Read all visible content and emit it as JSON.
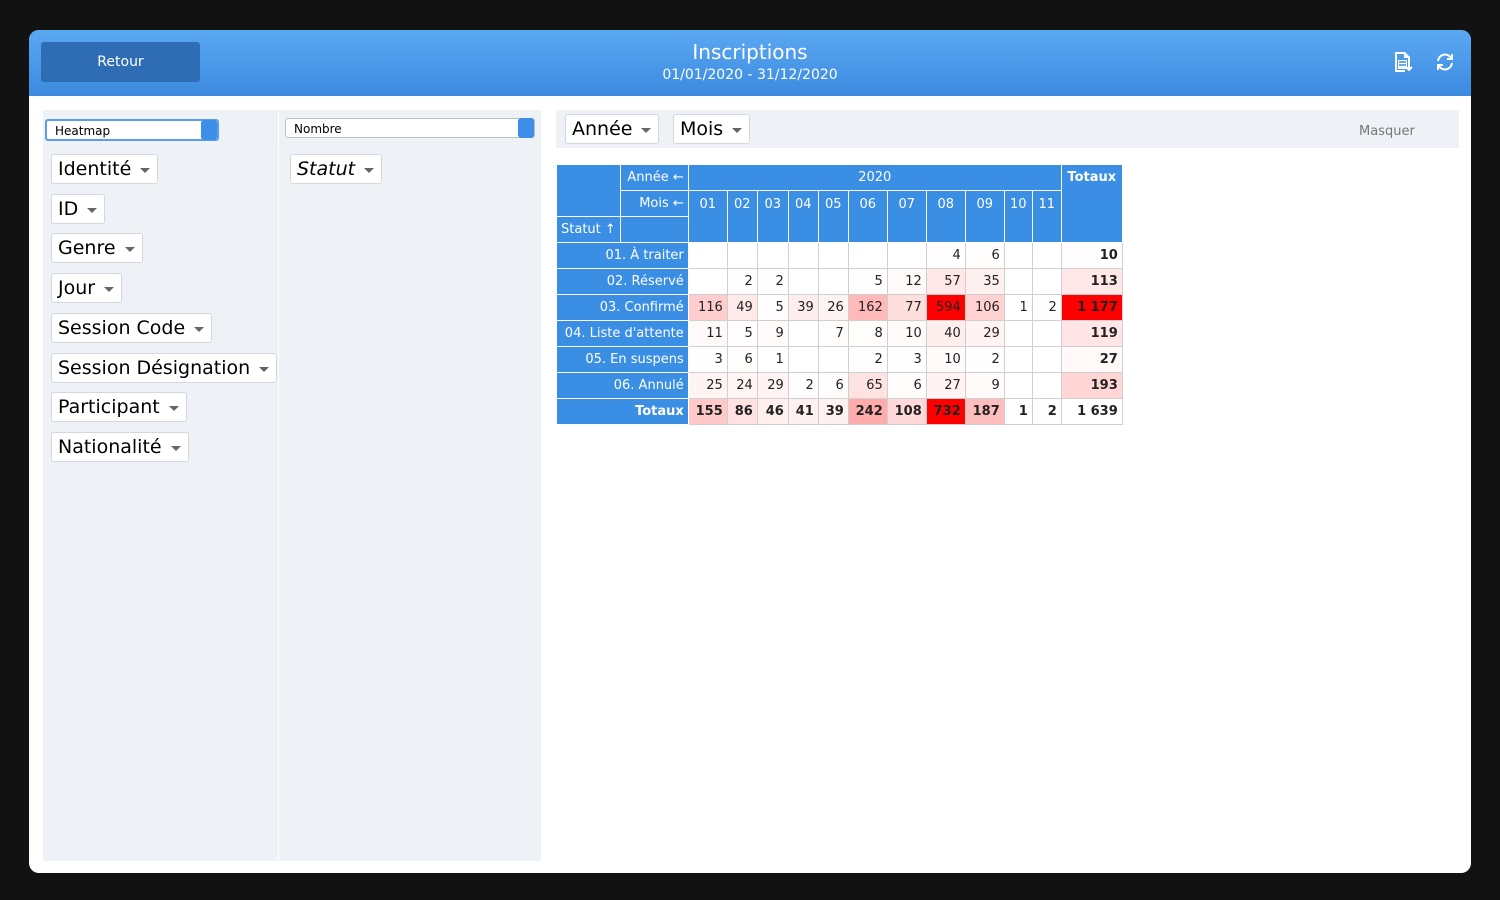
{
  "header": {
    "back_button": "Retour",
    "title": "Inscriptions",
    "date_range": "01/01/2020 - 31/12/2020"
  },
  "controls": {
    "renderer": "Heatmap",
    "aggregator": "Nombre",
    "unused_fields": [
      "Identité",
      "ID",
      "Genre",
      "Jour",
      "Session Code",
      "Session Désignation",
      "Participant",
      "Nationalité"
    ],
    "row_fields": [
      "Statut"
    ],
    "col_fields": [
      "Année",
      "Mois"
    ],
    "hide_link": "Masquer"
  },
  "table": {
    "year_label": "Année ←",
    "month_label": "Mois ←",
    "row_label": "Statut ↑",
    "year": "2020",
    "totals_header": "Totaux",
    "months": [
      "01",
      "02",
      "03",
      "04",
      "05",
      "06",
      "07",
      "08",
      "09",
      "10",
      "11"
    ],
    "rows": [
      {
        "label": "01. À traiter",
        "cells": [
          null,
          null,
          null,
          null,
          null,
          null,
          null,
          4,
          6,
          null,
          null
        ],
        "total": 10
      },
      {
        "label": "02. Réservé",
        "cells": [
          null,
          2,
          2,
          null,
          null,
          5,
          12,
          57,
          35,
          null,
          null
        ],
        "total": 113
      },
      {
        "label": "03. Confirmé",
        "cells": [
          116,
          49,
          5,
          39,
          26,
          162,
          77,
          594,
          106,
          1,
          2
        ],
        "total": "1 177"
      },
      {
        "label": "04. Liste d'attente",
        "cells": [
          11,
          5,
          9,
          null,
          7,
          8,
          10,
          40,
          29,
          null,
          null
        ],
        "total": 119
      },
      {
        "label": "05. En suspens",
        "cells": [
          3,
          6,
          1,
          null,
          null,
          2,
          3,
          10,
          2,
          null,
          null
        ],
        "total": 27
      },
      {
        "label": "06. Annulé",
        "cells": [
          25,
          24,
          29,
          2,
          6,
          65,
          6,
          27,
          9,
          null,
          null
        ],
        "total": 193
      }
    ],
    "totals_row": {
      "label": "Totaux",
      "cells": [
        155,
        86,
        46,
        41,
        39,
        242,
        108,
        732,
        187,
        1,
        2
      ],
      "total": "1 639"
    }
  }
}
